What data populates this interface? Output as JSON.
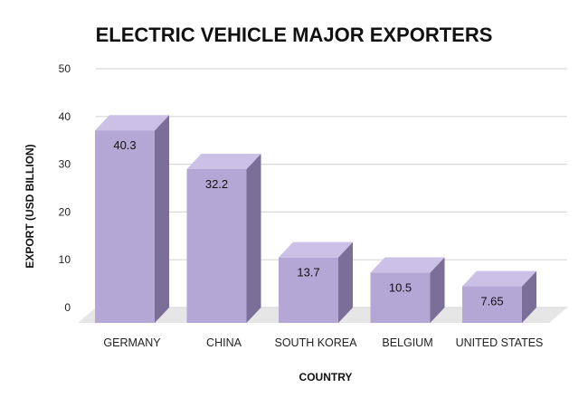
{
  "chart_data": {
    "type": "bar",
    "title": "ELECTRIC VEHICLE MAJOR EXPORTERS",
    "xlabel": "COUNTRY",
    "ylabel": "EXPORT (USD BILLION)",
    "categories": [
      "GERMANY",
      "CHINA",
      "SOUTH KOREA",
      "BELGIUM",
      "UNITED STATES"
    ],
    "values": [
      40.3,
      32.2,
      13.7,
      10.5,
      7.65
    ],
    "data_labels": [
      "40.3",
      "32.2",
      "13.7",
      "10.5",
      "7.65"
    ],
    "ylim": [
      0,
      50
    ],
    "yticks": [
      "0",
      "10",
      "20",
      "30",
      "40",
      "50"
    ],
    "grid": true,
    "style": "3d-column",
    "colors": {
      "bar_front": "#b4a7d6",
      "bar_side": "#7b6f9a",
      "bar_top": "#cbc0e6",
      "floor": "#e6e6e6",
      "grid": "#d9d9d9"
    }
  }
}
